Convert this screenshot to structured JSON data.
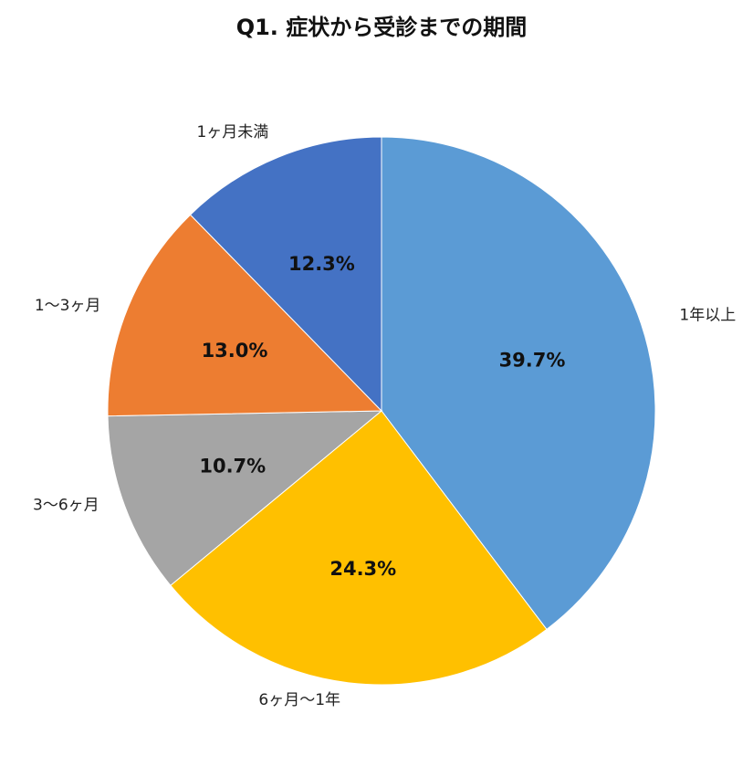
{
  "chart_data": {
    "type": "pie",
    "title": "Q1. 症状から受診までの期間",
    "categories": [
      "1年以上",
      "6ヶ月〜1年",
      "3〜6ヶ月",
      "1〜3ヶ月",
      "1ヶ月未満"
    ],
    "values": [
      39.7,
      24.3,
      10.7,
      13.0,
      12.3
    ],
    "data_labels": [
      "39.7%",
      "24.3%",
      "10.7%",
      "13.0%",
      "12.3%"
    ],
    "colors": [
      "#5B9BD5",
      "#FFC000",
      "#A5A5A5",
      "#ED7D31",
      "#4472C4"
    ],
    "start": "12 o'clock",
    "direction": "clockwise",
    "legend": "none"
  }
}
